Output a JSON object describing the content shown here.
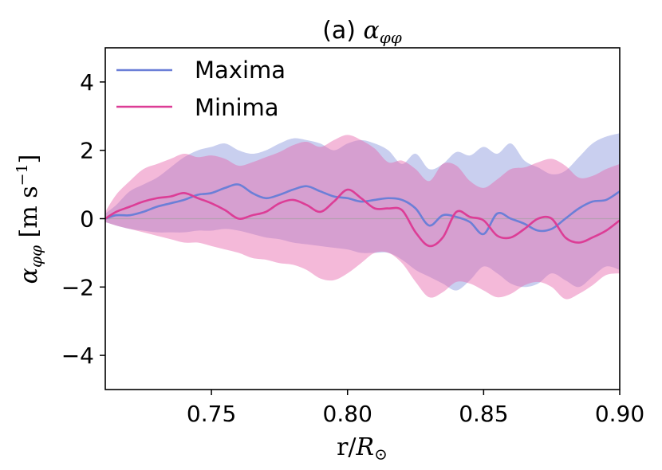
{
  "chart_data": {
    "type": "line",
    "title_prefix": "(a) ",
    "title_symbol": "α",
    "title_subscript": "φφ",
    "xlabel_text": "r/",
    "xlabel_symbol": "R",
    "xlabel_subscript": "⊙",
    "ylabel_symbol": "α",
    "ylabel_subscript": "φφ",
    "ylabel_unit_open": " [m s",
    "ylabel_unit_exp": "−1",
    "ylabel_unit_close": "]",
    "xlim": [
      0.711,
      0.9
    ],
    "ylim": [
      -5,
      5
    ],
    "xticks": [
      0.75,
      0.8,
      0.85,
      0.9
    ],
    "xtick_labels": [
      "0.75",
      "0.80",
      "0.85",
      "0.90"
    ],
    "yticks": [
      4,
      2,
      0,
      -2,
      -4
    ],
    "ytick_labels": [
      "4",
      "2",
      "0",
      "−2",
      "−4"
    ],
    "zero_line": true,
    "grid": false,
    "legend_position": "top-left",
    "x": [
      0.711,
      0.715,
      0.72,
      0.725,
      0.73,
      0.735,
      0.74,
      0.745,
      0.75,
      0.755,
      0.76,
      0.765,
      0.77,
      0.775,
      0.78,
      0.785,
      0.79,
      0.795,
      0.8,
      0.805,
      0.81,
      0.815,
      0.82,
      0.825,
      0.83,
      0.835,
      0.84,
      0.845,
      0.85,
      0.855,
      0.86,
      0.865,
      0.87,
      0.875,
      0.88,
      0.885,
      0.89,
      0.895,
      0.9
    ],
    "series": [
      {
        "name": "Maxima",
        "color": "#6b7fd7",
        "fill": "rgba(120,135,215,0.40)",
        "values": [
          0.0,
          0.1,
          0.1,
          0.2,
          0.35,
          0.45,
          0.55,
          0.7,
          0.75,
          0.9,
          1.0,
          0.75,
          0.6,
          0.7,
          0.85,
          0.95,
          0.8,
          0.65,
          0.6,
          0.5,
          0.55,
          0.6,
          0.55,
          0.3,
          -0.2,
          0.1,
          0.05,
          -0.1,
          -0.45,
          0.15,
          0.0,
          -0.15,
          -0.35,
          -0.3,
          0.0,
          0.3,
          0.5,
          0.55,
          0.8
        ],
        "upper": [
          0.15,
          0.4,
          0.8,
          1.0,
          1.2,
          1.5,
          1.8,
          2.0,
          2.1,
          2.2,
          2.0,
          1.9,
          2.0,
          2.2,
          2.35,
          2.3,
          2.2,
          2.0,
          2.2,
          2.3,
          2.2,
          2.0,
          1.6,
          1.9,
          1.45,
          1.6,
          1.95,
          1.85,
          2.1,
          1.9,
          2.2,
          1.7,
          1.5,
          1.3,
          1.4,
          1.8,
          2.2,
          2.4,
          2.5
        ],
        "lower": [
          -0.1,
          -0.2,
          -0.3,
          -0.35,
          -0.4,
          -0.4,
          -0.4,
          -0.35,
          -0.35,
          -0.3,
          -0.35,
          -0.45,
          -0.55,
          -0.6,
          -0.7,
          -0.75,
          -0.8,
          -0.85,
          -0.9,
          -1.0,
          -1.0,
          -1.0,
          -1.2,
          -1.5,
          -1.7,
          -1.9,
          -2.1,
          -1.8,
          -1.4,
          -1.6,
          -1.9,
          -2.0,
          -1.9,
          -1.6,
          -1.8,
          -2.0,
          -1.7,
          -1.4,
          -1.5
        ]
      },
      {
        "name": "Minima",
        "color": "#dc3d96",
        "fill": "rgba(230,100,170,0.45)",
        "values": [
          0.0,
          0.2,
          0.35,
          0.5,
          0.6,
          0.65,
          0.75,
          0.6,
          0.45,
          0.25,
          0.0,
          0.1,
          0.2,
          0.45,
          0.55,
          0.4,
          0.2,
          0.5,
          0.85,
          0.6,
          0.3,
          0.3,
          0.25,
          -0.4,
          -0.8,
          -0.55,
          0.2,
          0.05,
          -0.05,
          -0.5,
          -0.55,
          -0.3,
          0.0,
          0.0,
          -0.55,
          -0.7,
          -0.55,
          -0.35,
          -0.05
        ],
        "upper": [
          0.2,
          0.7,
          1.1,
          1.45,
          1.6,
          1.75,
          1.9,
          1.8,
          1.85,
          1.75,
          1.55,
          1.65,
          1.8,
          1.95,
          2.15,
          2.25,
          2.1,
          2.3,
          2.45,
          2.3,
          2.05,
          1.65,
          1.7,
          1.45,
          1.1,
          1.6,
          1.55,
          1.1,
          0.9,
          1.15,
          1.45,
          1.5,
          1.65,
          1.75,
          1.55,
          1.2,
          1.25,
          1.45,
          1.6
        ],
        "lower": [
          -0.1,
          -0.2,
          -0.3,
          -0.4,
          -0.5,
          -0.6,
          -0.7,
          -0.7,
          -0.8,
          -0.9,
          -1.0,
          -1.15,
          -1.2,
          -1.3,
          -1.35,
          -1.5,
          -1.75,
          -1.8,
          -1.6,
          -1.3,
          -1.0,
          -1.0,
          -1.3,
          -1.85,
          -2.3,
          -2.15,
          -1.85,
          -1.9,
          -2.1,
          -2.3,
          -2.2,
          -1.95,
          -1.85,
          -2.0,
          -2.35,
          -2.2,
          -1.95,
          -1.65,
          -1.6
        ]
      }
    ]
  }
}
